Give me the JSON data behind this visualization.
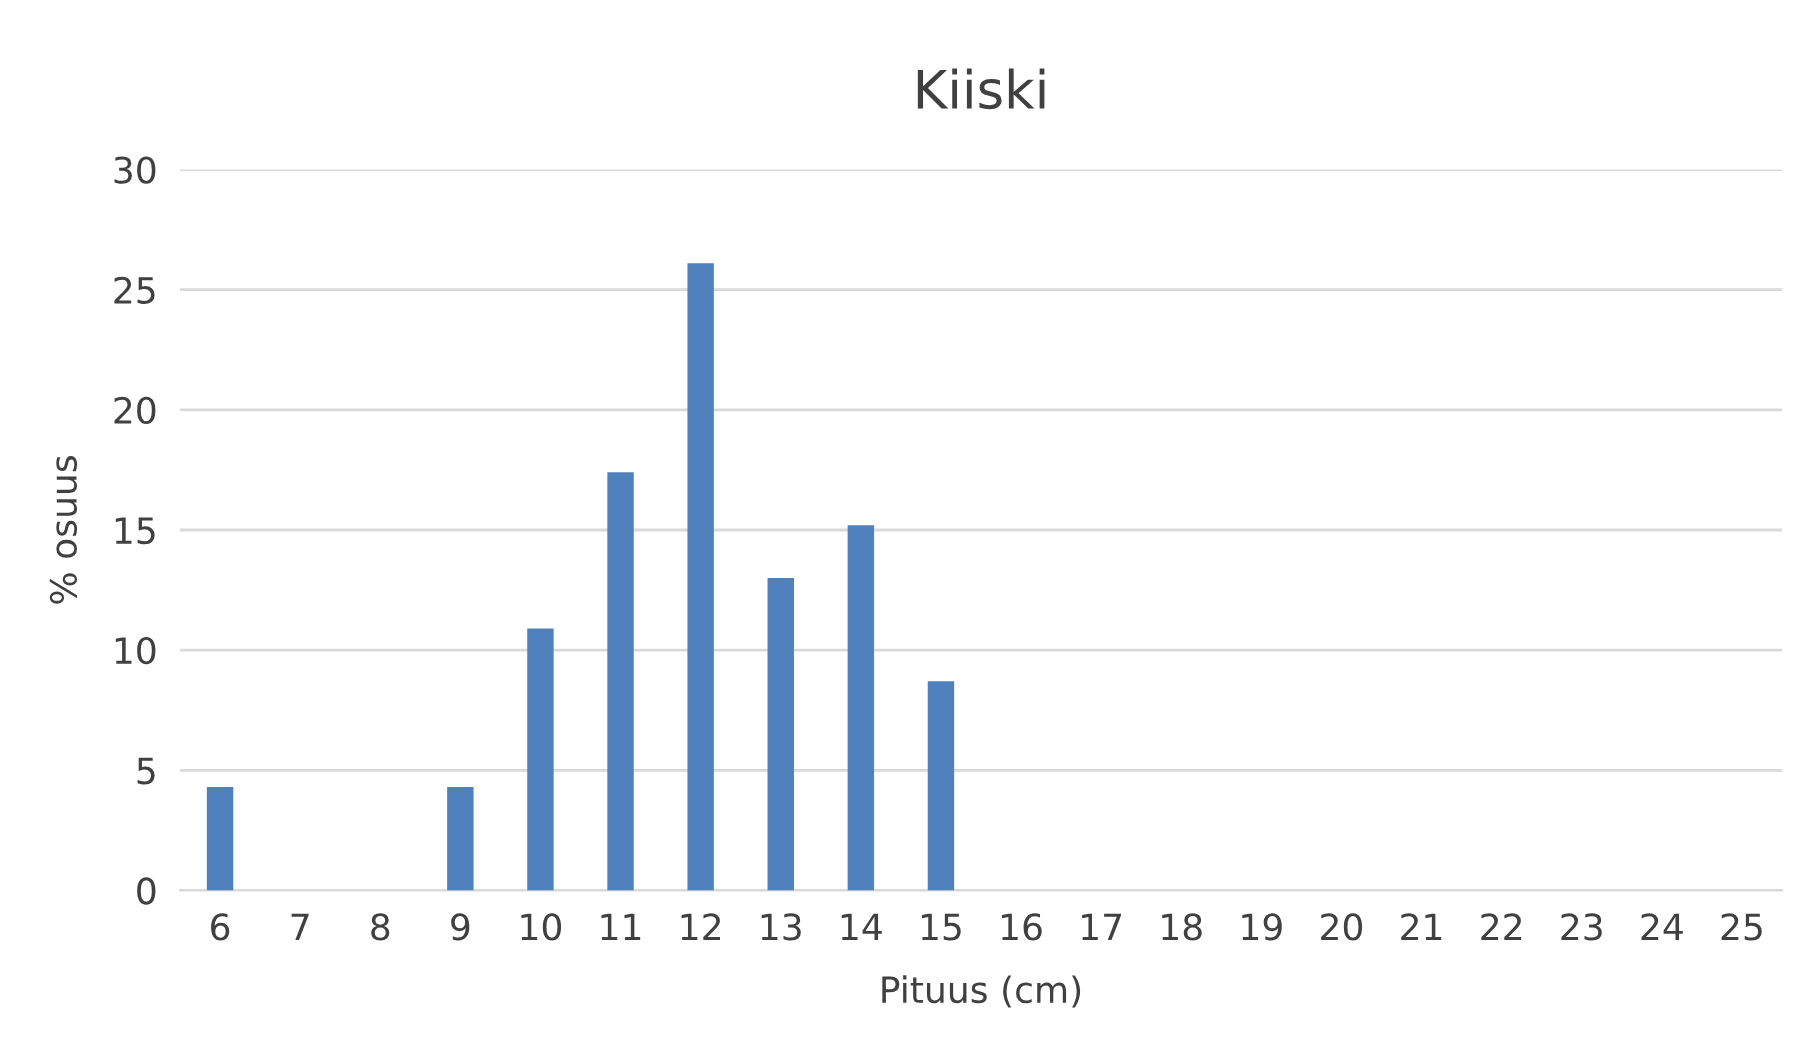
{
  "chart_data": {
    "type": "bar",
    "title": "Kiiski",
    "xlabel": "Pituus (cm)",
    "ylabel": "% osuus",
    "categories": [
      "6",
      "7",
      "8",
      "9",
      "10",
      "11",
      "12",
      "13",
      "14",
      "15",
      "16",
      "17",
      "18",
      "19",
      "20",
      "21",
      "22",
      "23",
      "24",
      "25"
    ],
    "series": [
      {
        "color": "#4f81bd",
        "values": [
          4.3,
          0,
          0,
          4.3,
          10.9,
          17.4,
          26.1,
          13.0,
          15.2,
          8.7,
          0,
          0,
          0,
          0,
          0,
          0,
          0,
          0,
          0,
          0
        ]
      }
    ],
    "ylim": [
      0,
      30
    ],
    "yticks": [
      0,
      5,
      10,
      15,
      20,
      25,
      30
    ],
    "grid": "y",
    "legend": false
  }
}
